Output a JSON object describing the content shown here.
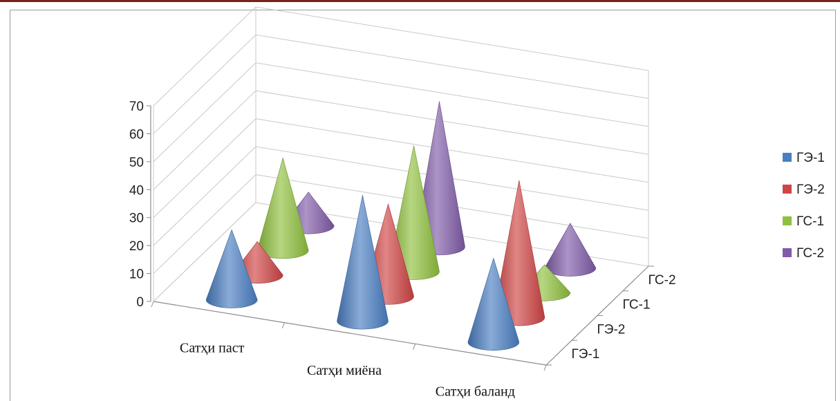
{
  "chart_data": {
    "type": "bar",
    "shape": "3d-cone",
    "title": "",
    "categories": [
      "Сатҳи паст",
      "Сатҳи миёна",
      "Сатҳи баланд"
    ],
    "series": [
      {
        "name": "ГЭ-1",
        "color": "#4a7ec2",
        "values": [
          25,
          45,
          30
        ]
      },
      {
        "name": "ГЭ-2",
        "color": "#cf4444",
        "values": [
          12,
          33,
          49
        ]
      },
      {
        "name": "ГС-1",
        "color": "#8fc03d",
        "values": [
          33,
          45,
          10
        ]
      },
      {
        "name": "ГС-2",
        "color": "#7f5ba8",
        "values": [
          12,
          52,
          16
        ]
      }
    ],
    "ylim": [
      0,
      70
    ],
    "yticks": [
      "0",
      "10",
      "20",
      "30",
      "40",
      "50",
      "60",
      "70"
    ],
    "depth_labels": [
      "ГЭ-1",
      "ГЭ-2",
      "ГС-1",
      "ГС-2"
    ],
    "legend": [
      "ГЭ-1",
      "ГЭ-2",
      "ГС-1",
      "ГС-2"
    ],
    "legend_position": "right",
    "grid": true
  }
}
